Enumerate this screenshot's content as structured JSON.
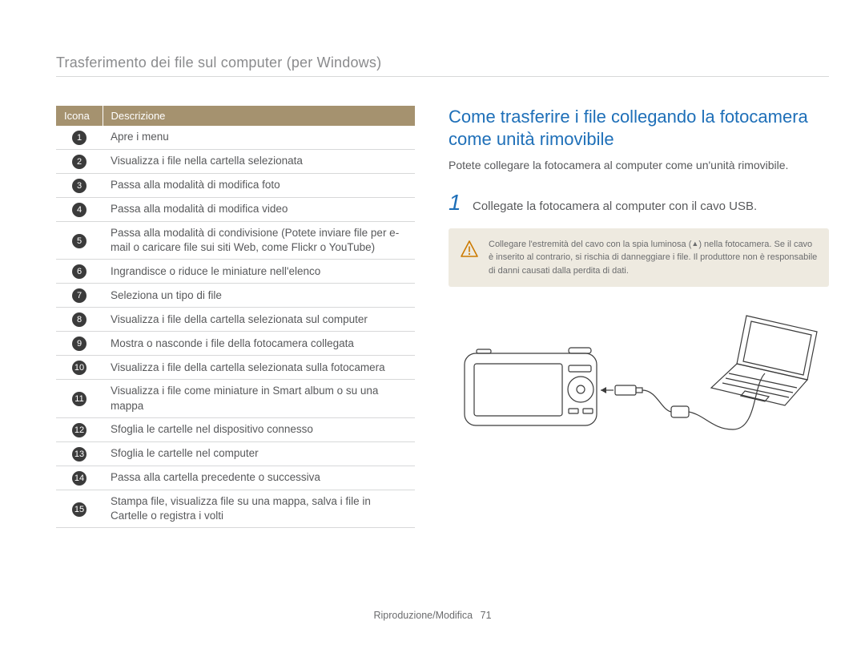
{
  "page": {
    "title": "Trasferimento dei file sul computer (per Windows)"
  },
  "table": {
    "headers": {
      "icon": "Icona",
      "desc": "Descrizione"
    },
    "rows": [
      {
        "num": "1",
        "desc": "Apre i menu"
      },
      {
        "num": "2",
        "desc": "Visualizza i file nella cartella selezionata"
      },
      {
        "num": "3",
        "desc": "Passa alla modalità di modifica foto"
      },
      {
        "num": "4",
        "desc": "Passa alla modalità di modifica video"
      },
      {
        "num": "5",
        "desc": "Passa alla modalità di condivisione (Potete inviare file per e-mail o caricare file sui siti Web, come Flickr o YouTube)"
      },
      {
        "num": "6",
        "desc": "Ingrandisce o riduce le miniature nell'elenco"
      },
      {
        "num": "7",
        "desc": "Seleziona un tipo di file"
      },
      {
        "num": "8",
        "desc": "Visualizza i file della cartella selezionata sul computer"
      },
      {
        "num": "9",
        "desc": "Mostra o nasconde i file della fotocamera collegata"
      },
      {
        "num": "10",
        "desc": "Visualizza i file della cartella selezionata sulla fotocamera"
      },
      {
        "num": "11",
        "desc": "Visualizza i file come miniature in Smart album o su una mappa"
      },
      {
        "num": "12",
        "desc": "Sfoglia le cartelle nel dispositivo connesso"
      },
      {
        "num": "13",
        "desc": "Sfoglia le cartelle nel computer"
      },
      {
        "num": "14",
        "desc": "Passa alla cartella precedente o successiva"
      },
      {
        "num": "15",
        "desc": "Stampa file, visualizza file su una mappa, salva i file in Cartelle o registra i volti"
      }
    ],
    "header_bg": "#a5926f",
    "header_fg": "#ffffff",
    "border_color": "#d7d8d9",
    "circ_bg": "#3b3b3b",
    "circ_fg": "#ffffff"
  },
  "section": {
    "title": "Come trasferire i file collegando la fotocamera come unità rimovibile",
    "title_color": "#1e6fb8",
    "intro": "Potete collegare la fotocamera al computer come un'unità rimovibile."
  },
  "step1": {
    "num": "1",
    "text": "Collegate la fotocamera al computer con il cavo USB."
  },
  "warning": {
    "box_bg": "#eeeae0",
    "icon_stroke": "#cc7a00",
    "line1_a": "Collegare l'estremità del cavo con la spia luminosa (",
    "line1_b": ") nella fotocamera.",
    "line2": "Se il cavo è inserito al contrario, si rischia di danneggiare i file. Il produttore non è responsabile di danni causati dalla perdita di dati."
  },
  "illustration": {
    "stroke": "#3b3b3b"
  },
  "footer": {
    "section": "Riproduzione/Modifica",
    "page_num": "71"
  }
}
